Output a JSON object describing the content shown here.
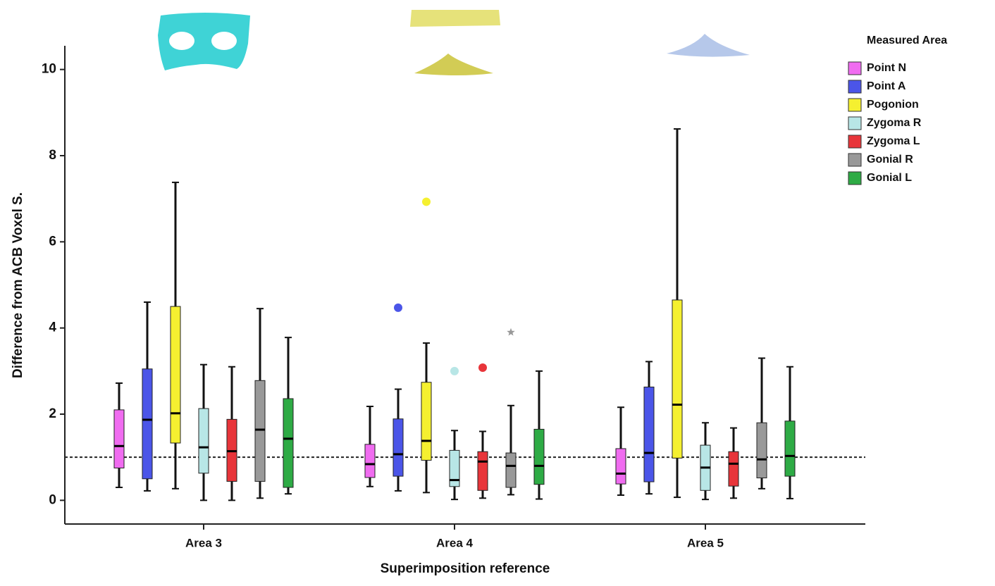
{
  "chart_data": {
    "type": "box",
    "x_label": "Superimposition reference",
    "y_label": "Difference from ACB Voxel S.",
    "categories": [
      "Area 3",
      "Area 4",
      "Area 5"
    ],
    "ylim": [
      -0.55,
      10.55
    ],
    "yticks": [
      0,
      2,
      4,
      6,
      8,
      10
    ],
    "reference_line": 1,
    "legend_title": "Measured Area",
    "legend_position": "right",
    "series": [
      {
        "name": "Point N",
        "color": "#f06cf0",
        "min": [
          0.3,
          0.32,
          0.12
        ],
        "q1": [
          0.75,
          0.53,
          0.38
        ],
        "median": [
          1.26,
          0.84,
          0.62
        ],
        "q3": [
          2.1,
          1.3,
          1.2
        ],
        "max": [
          2.72,
          2.18,
          2.16
        ],
        "outliers": [
          [],
          [],
          []
        ],
        "extremes": [
          [],
          [],
          []
        ]
      },
      {
        "name": "Point A",
        "color": "#4b55e8",
        "min": [
          0.22,
          0.22,
          0.15
        ],
        "q1": [
          0.5,
          0.56,
          0.43
        ],
        "median": [
          1.87,
          1.07,
          1.1
        ],
        "q3": [
          3.05,
          1.89,
          2.63
        ],
        "max": [
          4.6,
          2.58,
          3.22
        ],
        "outliers": [
          [],
          [
            4.47
          ],
          []
        ],
        "extremes": [
          [],
          [],
          []
        ]
      },
      {
        "name": "Pogonion",
        "color": "#f5f030",
        "min": [
          0.27,
          0.18,
          0.07
        ],
        "q1": [
          1.33,
          0.93,
          0.98
        ],
        "median": [
          2.02,
          1.38,
          2.22
        ],
        "q3": [
          4.5,
          2.74,
          4.65
        ],
        "max": [
          7.38,
          3.65,
          8.62
        ],
        "outliers": [
          [],
          [
            6.93
          ],
          []
        ],
        "extremes": [
          [],
          [],
          []
        ]
      },
      {
        "name": "Zygoma R",
        "color": "#b8e6e6",
        "min": [
          0.0,
          0.02,
          0.02
        ],
        "q1": [
          0.63,
          0.32,
          0.23
        ],
        "median": [
          1.23,
          0.47,
          0.76
        ],
        "q3": [
          2.13,
          1.16,
          1.28
        ],
        "max": [
          3.15,
          1.62,
          1.8
        ],
        "outliers": [
          [],
          [
            3.0
          ],
          []
        ],
        "extremes": [
          [],
          [],
          []
        ]
      },
      {
        "name": "Zygoma L",
        "color": "#e8353a",
        "min": [
          0.0,
          0.05,
          0.05
        ],
        "q1": [
          0.44,
          0.23,
          0.33
        ],
        "median": [
          1.14,
          0.9,
          0.85
        ],
        "q3": [
          1.88,
          1.13,
          1.13
        ],
        "max": [
          3.1,
          1.6,
          1.68
        ],
        "outliers": [
          [],
          [
            3.08
          ],
          []
        ],
        "extremes": [
          [],
          [],
          []
        ]
      },
      {
        "name": "Gonial R",
        "color": "#999999",
        "min": [
          0.05,
          0.13,
          0.27
        ],
        "q1": [
          0.44,
          0.3,
          0.52
        ],
        "median": [
          1.64,
          0.8,
          0.95
        ],
        "q3": [
          2.78,
          1.1,
          1.8
        ],
        "max": [
          4.45,
          2.2,
          3.3
        ],
        "outliers": [
          [],
          [],
          []
        ],
        "extremes": [
          [],
          [
            3.9
          ],
          []
        ]
      },
      {
        "name": "Gonial L",
        "color": "#2eab45",
        "min": [
          0.15,
          0.03,
          0.04
        ],
        "q1": [
          0.3,
          0.37,
          0.56
        ],
        "median": [
          1.43,
          0.8,
          1.03
        ],
        "q3": [
          2.36,
          1.65,
          1.84
        ],
        "max": [
          3.78,
          3.0,
          3.1
        ],
        "outliers": [
          [],
          [],
          []
        ],
        "extremes": [
          [],
          [],
          []
        ]
      }
    ]
  }
}
